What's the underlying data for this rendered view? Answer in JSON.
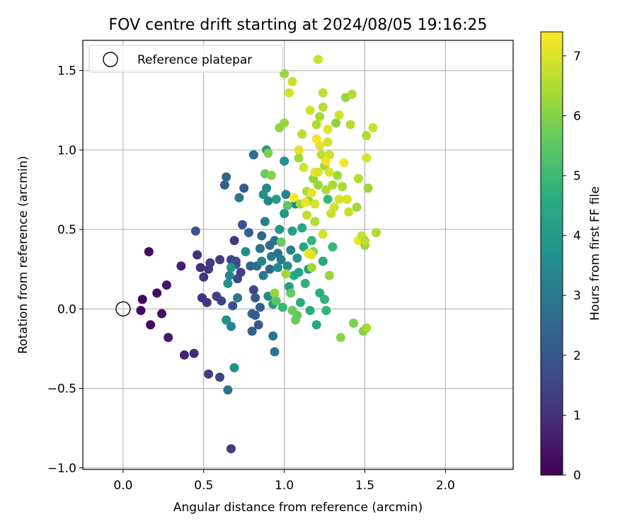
{
  "chart_data": {
    "type": "scatter",
    "title": "FOV centre drift starting at 2024/08/05 19:16:25",
    "xlabel": "Angular distance from reference (arcmin)",
    "ylabel": "Rotation from reference (arcmin)",
    "xlim": [
      -0.25,
      2.42
    ],
    "ylim": [
      -1.01,
      1.69
    ],
    "xticks": [
      0.0,
      0.5,
      1.0,
      1.5,
      2.0
    ],
    "xtick_labels": [
      "0.0",
      "0.5",
      "1.0",
      "1.5",
      "2.0"
    ],
    "yticks": [
      -1.0,
      -0.5,
      0.0,
      0.5,
      1.0,
      1.5
    ],
    "ytick_labels": [
      "−1.0",
      "−0.5",
      "0.0",
      "0.5",
      "1.0",
      "1.5"
    ],
    "grid": true,
    "legend": {
      "placement": "top-left",
      "entries": [
        "Reference platepar"
      ]
    },
    "reference_point": {
      "x": 0.0,
      "y": 0.0,
      "label": "Reference platepar"
    },
    "colorbar": {
      "label": "Hours from first FF file",
      "colormap": "viridis",
      "range": [
        0,
        7.4
      ],
      "ticks": [
        0,
        1,
        2,
        3,
        4,
        5,
        6,
        7
      ],
      "tick_labels": [
        "0",
        "1",
        "2",
        "3",
        "4",
        "5",
        "6",
        "7"
      ]
    },
    "points": [
      {
        "x": 0.12,
        "y": 0.06,
        "t": 0.1
      },
      {
        "x": 0.11,
        "y": -0.01,
        "t": 0.15
      },
      {
        "x": 0.16,
        "y": 0.36,
        "t": 0.2
      },
      {
        "x": 0.17,
        "y": -0.1,
        "t": 0.25
      },
      {
        "x": 0.21,
        "y": 0.1,
        "t": 0.3
      },
      {
        "x": 0.24,
        "y": -0.03,
        "t": 0.35
      },
      {
        "x": 0.27,
        "y": 0.15,
        "t": 0.4
      },
      {
        "x": 0.28,
        "y": -0.18,
        "t": 0.5
      },
      {
        "x": 0.36,
        "y": 0.27,
        "t": 0.6
      },
      {
        "x": 0.38,
        "y": -0.29,
        "t": 0.7
      },
      {
        "x": 0.44,
        "y": -0.28,
        "t": 0.9
      },
      {
        "x": 0.46,
        "y": 0.34,
        "t": 1.0
      },
      {
        "x": 0.48,
        "y": 0.26,
        "t": 1.05
      },
      {
        "x": 0.49,
        "y": 0.07,
        "t": 1.1
      },
      {
        "x": 0.5,
        "y": 0.2,
        "t": 1.15
      },
      {
        "x": 0.52,
        "y": 0.04,
        "t": 1.2
      },
      {
        "x": 0.53,
        "y": -0.41,
        "t": 1.3
      },
      {
        "x": 0.53,
        "y": 0.25,
        "t": 1.25
      },
      {
        "x": 0.54,
        "y": 0.29,
        "t": 1.3
      },
      {
        "x": 0.58,
        "y": 0.08,
        "t": 1.4
      },
      {
        "x": 0.6,
        "y": -0.43,
        "t": 1.5
      },
      {
        "x": 0.61,
        "y": 0.05,
        "t": 1.45
      },
      {
        "x": 0.6,
        "y": 0.31,
        "t": 1.35
      },
      {
        "x": 0.45,
        "y": 0.49,
        "t": 1.9
      },
      {
        "x": 0.63,
        "y": 0.78,
        "t": 2.2
      },
      {
        "x": 0.64,
        "y": 0.83,
        "t": 2.4
      },
      {
        "x": 0.65,
        "y": -0.51,
        "t": 2.8
      },
      {
        "x": 0.67,
        "y": -0.88,
        "t": 1.3
      },
      {
        "x": 0.67,
        "y": 0.31,
        "t": 1.6
      },
      {
        "x": 0.68,
        "y": 0.02,
        "t": 1.8
      },
      {
        "x": 0.69,
        "y": 0.43,
        "t": 1.2
      },
      {
        "x": 0.7,
        "y": 0.28,
        "t": 1.8
      },
      {
        "x": 0.7,
        "y": 0.3,
        "t": 1.7
      },
      {
        "x": 0.71,
        "y": 0.19,
        "t": 1.7
      },
      {
        "x": 0.73,
        "y": 0.23,
        "t": 1.4
      },
      {
        "x": 0.74,
        "y": 0.53,
        "t": 2.0
      },
      {
        "x": 0.75,
        "y": 0.76,
        "t": 2.1
      },
      {
        "x": 0.72,
        "y": 0.7,
        "t": 2.9
      },
      {
        "x": 0.69,
        "y": -0.37,
        "t": 3.7
      },
      {
        "x": 0.64,
        "y": -0.07,
        "t": 3.6
      },
      {
        "x": 0.65,
        "y": 0.16,
        "t": 3.8
      },
      {
        "x": 0.66,
        "y": 0.21,
        "t": 3.4
      },
      {
        "x": 0.67,
        "y": 0.26,
        "t": 3.9
      },
      {
        "x": 0.67,
        "y": -0.11,
        "t": 3.3
      },
      {
        "x": 0.71,
        "y": 0.07,
        "t": 3.0
      },
      {
        "x": 0.76,
        "y": 0.36,
        "t": 3.6
      },
      {
        "x": 0.78,
        "y": 0.48,
        "t": 2.2
      },
      {
        "x": 0.79,
        "y": 0.27,
        "t": 2.3
      },
      {
        "x": 0.8,
        "y": -0.03,
        "t": 2.5
      },
      {
        "x": 0.8,
        "y": -0.14,
        "t": 2.2
      },
      {
        "x": 0.81,
        "y": 0.97,
        "t": 2.6
      },
      {
        "x": 0.81,
        "y": 0.12,
        "t": 1.6
      },
      {
        "x": 0.82,
        "y": 0.07,
        "t": 2.0
      },
      {
        "x": 0.82,
        "y": -0.04,
        "t": 2.1
      },
      {
        "x": 0.83,
        "y": 0.27,
        "t": 2.7
      },
      {
        "x": 0.84,
        "y": -0.1,
        "t": 2.0
      },
      {
        "x": 0.85,
        "y": 0.01,
        "t": 2.3
      },
      {
        "x": 0.85,
        "y": 0.38,
        "t": 2.8
      },
      {
        "x": 0.86,
        "y": 0.46,
        "t": 2.5
      },
      {
        "x": 0.86,
        "y": 0.3,
        "t": 3.3
      },
      {
        "x": 0.87,
        "y": 0.21,
        "t": 3.0
      },
      {
        "x": 0.87,
        "y": 0.72,
        "t": 3.8
      },
      {
        "x": 0.88,
        "y": 0.55,
        "t": 3.2
      },
      {
        "x": 0.89,
        "y": 1.0,
        "t": 4.0
      },
      {
        "x": 0.89,
        "y": 0.76,
        "t": 3.4
      },
      {
        "x": 0.9,
        "y": 0.68,
        "t": 3.3
      },
      {
        "x": 0.9,
        "y": 0.08,
        "t": 3.5
      },
      {
        "x": 0.91,
        "y": 0.4,
        "t": 2.6
      },
      {
        "x": 0.91,
        "y": 0.25,
        "t": 2.4
      },
      {
        "x": 0.92,
        "y": 0.33,
        "t": 3.1
      },
      {
        "x": 0.93,
        "y": -0.17,
        "t": 2.9
      },
      {
        "x": 0.93,
        "y": 0.03,
        "t": 4.1
      },
      {
        "x": 0.94,
        "y": -0.27,
        "t": 2.9
      },
      {
        "x": 0.94,
        "y": 0.43,
        "t": 2.7
      },
      {
        "x": 0.95,
        "y": 0.69,
        "t": 4.0
      },
      {
        "x": 0.96,
        "y": 0.26,
        "t": 3.5
      },
      {
        "x": 0.96,
        "y": 0.35,
        "t": 2.8
      },
      {
        "x": 0.97,
        "y": 0.5,
        "t": 3.9
      },
      {
        "x": 0.98,
        "y": 0.31,
        "t": 3.0
      },
      {
        "x": 0.99,
        "y": 0.01,
        "t": 4.9
      },
      {
        "x": 1.0,
        "y": 0.93,
        "t": 3.7
      },
      {
        "x": 1.0,
        "y": 0.6,
        "t": 3.9
      },
      {
        "x": 1.01,
        "y": 0.72,
        "t": 3.3
      },
      {
        "x": 1.02,
        "y": 0.27,
        "t": 3.6
      },
      {
        "x": 1.03,
        "y": 0.14,
        "t": 4.2
      },
      {
        "x": 1.04,
        "y": 0.37,
        "t": 3.2
      },
      {
        "x": 1.05,
        "y": 0.49,
        "t": 4.1
      },
      {
        "x": 1.06,
        "y": 0.21,
        "t": 4.5
      },
      {
        "x": 1.07,
        "y": 0.66,
        "t": 3.4
      },
      {
        "x": 1.08,
        "y": 0.32,
        "t": 3.8
      },
      {
        "x": 1.09,
        "y": 0.23,
        "t": 4.2
      },
      {
        "x": 1.1,
        "y": 0.04,
        "t": 4.6
      },
      {
        "x": 1.11,
        "y": 0.51,
        "t": 4.3
      },
      {
        "x": 1.12,
        "y": 0.39,
        "t": 4.4
      },
      {
        "x": 1.13,
        "y": 0.16,
        "t": 4.7
      },
      {
        "x": 1.15,
        "y": 0.25,
        "t": 4.0
      },
      {
        "x": 1.16,
        "y": -0.01,
        "t": 4.6
      },
      {
        "x": 1.17,
        "y": 0.43,
        "t": 4.8
      },
      {
        "x": 1.2,
        "y": -0.1,
        "t": 4.4
      },
      {
        "x": 1.22,
        "y": 0.1,
        "t": 4.7
      },
      {
        "x": 1.24,
        "y": 0.3,
        "t": 4.4
      },
      {
        "x": 1.25,
        "y": 0.06,
        "t": 4.8
      },
      {
        "x": 1.26,
        "y": -0.01,
        "t": 4.8
      },
      {
        "x": 1.27,
        "y": 0.69,
        "t": 4.9
      },
      {
        "x": 1.3,
        "y": 0.39,
        "t": 4.9
      },
      {
        "x": 0.88,
        "y": 0.85,
        "t": 5.7
      },
      {
        "x": 0.9,
        "y": 0.98,
        "t": 5.9
      },
      {
        "x": 0.92,
        "y": 0.84,
        "t": 6.0
      },
      {
        "x": 0.94,
        "y": 0.1,
        "t": 6.2
      },
      {
        "x": 0.95,
        "y": 0.05,
        "t": 5.4
      },
      {
        "x": 0.97,
        "y": 1.14,
        "t": 6.1
      },
      {
        "x": 0.98,
        "y": 0.42,
        "t": 5.6
      },
      {
        "x": 1.0,
        "y": 1.17,
        "t": 6.2
      },
      {
        "x": 1.0,
        "y": 1.48,
        "t": 6.2
      },
      {
        "x": 1.01,
        "y": 0.22,
        "t": 6.3
      },
      {
        "x": 1.02,
        "y": 0.65,
        "t": 5.5
      },
      {
        "x": 1.03,
        "y": 1.36,
        "t": 6.9
      },
      {
        "x": 1.04,
        "y": 0.1,
        "t": 5.6
      },
      {
        "x": 1.05,
        "y": 1.43,
        "t": 6.8
      },
      {
        "x": 1.05,
        "y": -0.01,
        "t": 5.7
      },
      {
        "x": 1.06,
        "y": 0.7,
        "t": 6.4
      },
      {
        "x": 1.07,
        "y": -0.07,
        "t": 5.7
      },
      {
        "x": 1.08,
        "y": -0.04,
        "t": 5.6
      },
      {
        "x": 1.09,
        "y": 0.95,
        "t": 6.3
      },
      {
        "x": 1.1,
        "y": 0.66,
        "t": 6.4
      },
      {
        "x": 1.11,
        "y": 1.1,
        "t": 6.6
      },
      {
        "x": 1.12,
        "y": 0.89,
        "t": 6.9
      },
      {
        "x": 1.14,
        "y": 0.74,
        "t": 6.5
      },
      {
        "x": 1.15,
        "y": 0.68,
        "t": 6.2
      },
      {
        "x": 1.16,
        "y": 1.25,
        "t": 6.9
      },
      {
        "x": 1.17,
        "y": 0.26,
        "t": 6.3
      },
      {
        "x": 1.18,
        "y": 0.82,
        "t": 6.1
      },
      {
        "x": 1.18,
        "y": 0.36,
        "t": 6.0
      },
      {
        "x": 1.19,
        "y": 0.55,
        "t": 6.5
      },
      {
        "x": 1.2,
        "y": 1.16,
        "t": 6.5
      },
      {
        "x": 1.21,
        "y": 1.57,
        "t": 6.8
      },
      {
        "x": 1.21,
        "y": 0.78,
        "t": 6.2
      },
      {
        "x": 1.22,
        "y": 1.21,
        "t": 6.4
      },
      {
        "x": 1.23,
        "y": 0.97,
        "t": 6.7
      },
      {
        "x": 1.24,
        "y": 1.27,
        "t": 6.6
      },
      {
        "x": 1.24,
        "y": 0.47,
        "t": 6.9
      },
      {
        "x": 1.25,
        "y": 0.9,
        "t": 6.3
      },
      {
        "x": 1.26,
        "y": 0.75,
        "t": 6.5
      },
      {
        "x": 1.27,
        "y": 1.13,
        "t": 7.1
      },
      {
        "x": 1.28,
        "y": 0.97,
        "t": 6.8
      },
      {
        "x": 1.28,
        "y": 0.21,
        "t": 6.2
      },
      {
        "x": 1.29,
        "y": 0.6,
        "t": 6.8
      },
      {
        "x": 1.3,
        "y": 0.78,
        "t": 6.4
      },
      {
        "x": 1.31,
        "y": 0.64,
        "t": 6.9
      },
      {
        "x": 1.32,
        "y": 1.17,
        "t": 6.1
      },
      {
        "x": 1.33,
        "y": 0.84,
        "t": 6.3
      },
      {
        "x": 1.34,
        "y": 1.22,
        "t": 6.9
      },
      {
        "x": 1.34,
        "y": 0.69,
        "t": 7.0
      },
      {
        "x": 1.35,
        "y": -0.18,
        "t": 6.1
      },
      {
        "x": 1.36,
        "y": 0.77,
        "t": 6.4
      },
      {
        "x": 1.37,
        "y": 0.92,
        "t": 7.3
      },
      {
        "x": 1.38,
        "y": 1.33,
        "t": 6.2
      },
      {
        "x": 1.4,
        "y": 0.61,
        "t": 6.8
      },
      {
        "x": 1.41,
        "y": 1.16,
        "t": 6.6
      },
      {
        "x": 1.43,
        "y": -0.09,
        "t": 5.9
      },
      {
        "x": 1.45,
        "y": 0.64,
        "t": 6.3
      },
      {
        "x": 1.46,
        "y": 0.82,
        "t": 6.6
      },
      {
        "x": 1.46,
        "y": 0.43,
        "t": 7.2
      },
      {
        "x": 1.48,
        "y": 0.46,
        "t": 6.8
      },
      {
        "x": 1.49,
        "y": -0.14,
        "t": 6.0
      },
      {
        "x": 1.5,
        "y": 0.4,
        "t": 6.3
      },
      {
        "x": 1.51,
        "y": 1.09,
        "t": 6.5
      },
      {
        "x": 1.51,
        "y": 0.95,
        "t": 7.0
      },
      {
        "x": 1.51,
        "y": -0.12,
        "t": 6.4
      },
      {
        "x": 1.52,
        "y": 0.76,
        "t": 6.3
      },
      {
        "x": 1.55,
        "y": 1.14,
        "t": 6.8
      },
      {
        "x": 1.57,
        "y": 0.48,
        "t": 6.5
      },
      {
        "x": 1.5,
        "y": 0.43,
        "t": 6.6
      },
      {
        "x": 1.15,
        "y": 0.35,
        "t": 7.2
      },
      {
        "x": 1.17,
        "y": 0.34,
        "t": 7.1
      },
      {
        "x": 1.19,
        "y": 0.86,
        "t": 7.2
      },
      {
        "x": 1.21,
        "y": 0.86,
        "t": 7.0
      },
      {
        "x": 1.22,
        "y": 1.03,
        "t": 7.1
      },
      {
        "x": 1.26,
        "y": 0.93,
        "t": 7.2
      },
      {
        "x": 1.27,
        "y": 1.05,
        "t": 6.9
      },
      {
        "x": 1.28,
        "y": 0.86,
        "t": 7.0
      },
      {
        "x": 1.19,
        "y": 0.66,
        "t": 7.0
      },
      {
        "x": 1.2,
        "y": 1.07,
        "t": 7.3
      },
      {
        "x": 1.17,
        "y": 0.73,
        "t": 7.1
      },
      {
        "x": 1.13,
        "y": 0.67,
        "t": 7.2
      },
      {
        "x": 1.09,
        "y": 1.0,
        "t": 7.1
      },
      {
        "x": 1.06,
        "y": 0.7,
        "t": 7.4
      },
      {
        "x": 1.14,
        "y": 0.59,
        "t": 6.7
      },
      {
        "x": 1.39,
        "y": 0.69,
        "t": 7.0
      },
      {
        "x": 1.42,
        "y": 1.35,
        "t": 6.5
      },
      {
        "x": 1.24,
        "y": 1.36,
        "t": 6.7
      }
    ]
  }
}
